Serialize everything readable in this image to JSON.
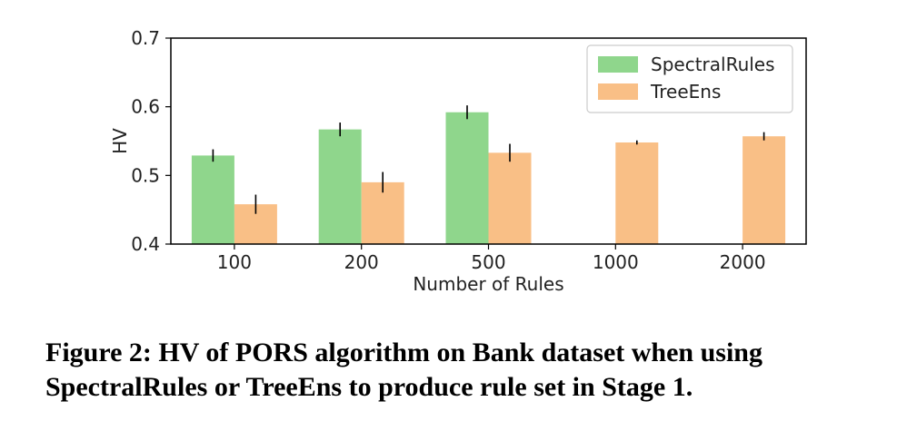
{
  "chart_data": {
    "type": "bar",
    "categories": [
      "100",
      "200",
      "500",
      "1000",
      "2000"
    ],
    "series": [
      {
        "name": "SpectralRules",
        "color": "#8fd68c",
        "values": [
          0.529,
          0.567,
          0.592,
          null,
          null
        ],
        "errors": [
          0.009,
          0.01,
          0.01,
          null,
          null
        ]
      },
      {
        "name": "TreeEns",
        "color": "#f9bf86",
        "values": [
          0.458,
          0.49,
          0.533,
          0.548,
          0.557
        ],
        "errors": [
          0.014,
          0.015,
          0.013,
          0.003,
          0.006
        ]
      }
    ],
    "xlabel": "Number of Rules",
    "ylabel": "HV",
    "ylim": [
      0.4,
      0.7
    ],
    "yticks": [
      "0.4",
      "0.5",
      "0.6",
      "0.7"
    ],
    "legend_position": "top-right",
    "grid": false
  },
  "caption": "Figure 2: HV of PORS algorithm on Bank dataset when using SpectralRules or TreeEns to produce rule set in Stage 1."
}
